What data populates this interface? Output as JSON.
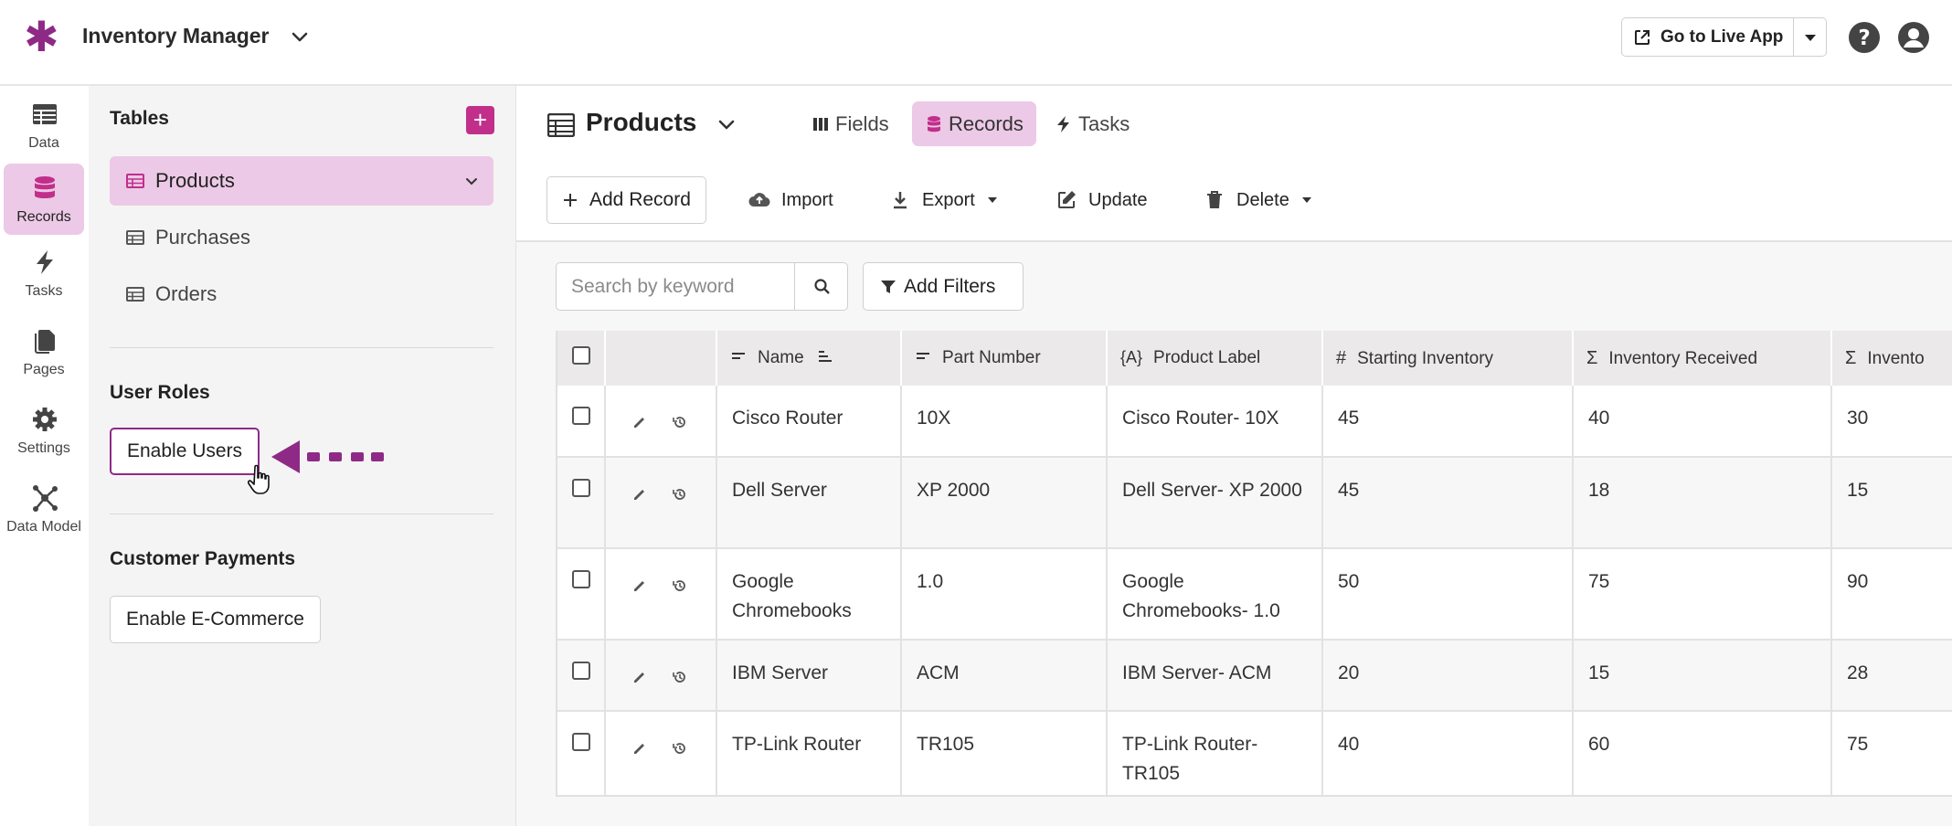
{
  "app": {
    "title": "Inventory Manager",
    "brand_color": "#8e2a86",
    "accent_color": "#c12f8b",
    "active_bg": "#ecc9e6",
    "live_app_label": "Go to Live App"
  },
  "nav": {
    "items": [
      {
        "label": "Data",
        "icon": "data-table-icon"
      },
      {
        "label": "Records",
        "icon": "database-icon",
        "active": true
      },
      {
        "label": "Tasks",
        "icon": "lightning-icon"
      },
      {
        "label": "Pages",
        "icon": "pages-icon"
      },
      {
        "label": "Settings",
        "icon": "gear-icon"
      },
      {
        "label": "Data Model",
        "icon": "data-model-icon"
      }
    ]
  },
  "sidebar": {
    "tables_title": "Tables",
    "add_table_label": "+",
    "tables": [
      {
        "name": "Products",
        "active": true
      },
      {
        "name": "Purchases"
      },
      {
        "name": "Orders"
      }
    ],
    "user_roles_title": "User Roles",
    "enable_users_label": "Enable Users",
    "customer_payments_title": "Customer Payments",
    "enable_ecommerce_label": "Enable E-Commerce"
  },
  "main": {
    "table_title": "Products",
    "tabs": [
      {
        "label": "Fields",
        "icon": "columns-icon"
      },
      {
        "label": "Records",
        "icon": "database-icon",
        "active": true
      },
      {
        "label": "Tasks",
        "icon": "lightning-icon"
      }
    ],
    "toolbar": {
      "add_record": "Add Record",
      "import": "Import",
      "export": "Export",
      "update": "Update",
      "delete": "Delete"
    },
    "search": {
      "placeholder": "Search by keyword"
    },
    "filters_label": "Add Filters"
  },
  "grid": {
    "columns": [
      {
        "label": "Name",
        "icon": "text-icon"
      },
      {
        "label": "Part Number",
        "icon": "text-icon"
      },
      {
        "label": "Product Label",
        "icon": "formula-icon"
      },
      {
        "label": "Starting Inventory",
        "icon": "number-icon"
      },
      {
        "label": "Inventory Received",
        "icon": "sum-icon"
      },
      {
        "label": "Invento",
        "icon": "sum-icon"
      }
    ],
    "rows": [
      {
        "name": "Cisco Router",
        "part": "10X",
        "label": "Cisco Router- 10X",
        "start": "45",
        "received": "40",
        "inv": "30"
      },
      {
        "name": "Dell Server",
        "part": "XP 2000",
        "label": "Dell Server- XP 2000",
        "start": "45",
        "received": "18",
        "inv": "15"
      },
      {
        "name": "Google Chromebooks",
        "part": "1.0",
        "label": "Google Chromebooks- 1.0",
        "start": "50",
        "received": "75",
        "inv": "90"
      },
      {
        "name": "IBM Server",
        "part": "ACM",
        "label": "IBM Server- ACM",
        "start": "20",
        "received": "15",
        "inv": "28"
      },
      {
        "name": "TP-Link Router",
        "part": "TR105",
        "label": "TP-Link Router- TR105",
        "start": "40",
        "received": "60",
        "inv": "75"
      }
    ]
  }
}
